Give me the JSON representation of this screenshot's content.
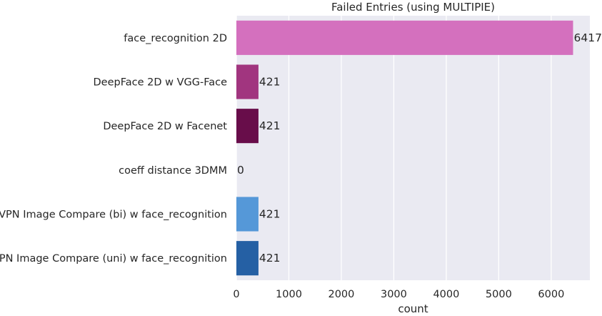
{
  "chart_data": {
    "type": "bar",
    "orientation": "horizontal",
    "title": "Failed Entries (using MULTIPIE)",
    "xlabel": "count",
    "ylabel": "",
    "categories": [
      "face_recognition 2D",
      "DeepFace 2D w VGG-Face",
      "DeepFace 2D w Facenet",
      "coeff distance 3DMM",
      "VPN Image Compare (bi) w face_recognition",
      "VPN Image Compare (uni) w face_recognition"
    ],
    "values": [
      6417,
      421,
      421,
      0,
      421,
      421
    ],
    "data_labels": [
      "6417",
      "421",
      "421",
      "0",
      "421",
      "421"
    ],
    "colors": [
      "#d470be",
      "#a1357f",
      "#680d4a",
      "#c9a64f",
      "#5598d8",
      "#2560a4"
    ],
    "xlim": [
      0,
      6737
    ],
    "xticks": [
      0,
      1000,
      2000,
      3000,
      4000,
      5000,
      6000
    ],
    "xtick_labels": [
      "0",
      "1000",
      "2000",
      "3000",
      "4000",
      "5000",
      "6000"
    ],
    "grid": true,
    "background": "#eaeaf2"
  }
}
